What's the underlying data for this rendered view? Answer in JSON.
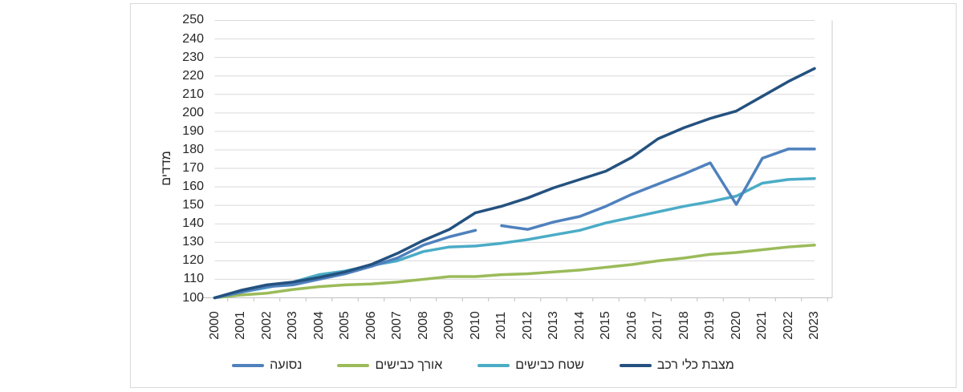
{
  "chart_data": {
    "type": "line",
    "title": "",
    "ylabel": "מדדים",
    "xlabel": "",
    "x": [
      2000,
      2001,
      2002,
      2003,
      2004,
      2005,
      2006,
      2007,
      2008,
      2009,
      2010,
      2011,
      2012,
      2013,
      2014,
      2015,
      2016,
      2017,
      2018,
      2019,
      2020,
      2021,
      2022,
      2023
    ],
    "yticks": [
      100,
      110,
      120,
      130,
      140,
      150,
      160,
      170,
      180,
      190,
      200,
      210,
      220,
      230,
      240,
      250
    ],
    "ylim": [
      100,
      250
    ],
    "grid": true,
    "legend_position": "bottom",
    "series": [
      {
        "key": "mileage",
        "name": "נסועה",
        "color": "#4F81BD",
        "gap_after_year": 2010,
        "values": [
          100,
          103,
          106,
          107,
          110,
          113,
          117,
          121.5,
          128.5,
          133,
          136.5,
          139,
          137,
          141,
          144,
          149.5,
          156,
          161.5,
          167,
          173,
          150.5,
          175.5,
          180.5,
          180.5
        ]
      },
      {
        "key": "road-length",
        "name": "אורך כבישים",
        "color": "#9BBB59",
        "values": [
          100,
          101.5,
          102.5,
          104.5,
          106,
          107,
          107.5,
          108.5,
          110,
          111.5,
          111.5,
          112.5,
          113,
          114,
          115,
          116.5,
          118,
          120,
          121.5,
          123.5,
          124.5,
          126,
          127.5,
          128.5
        ]
      },
      {
        "key": "road-area",
        "name": "שטח כבישים",
        "color": "#4BACC6",
        "values": [
          100,
          103,
          105.5,
          108.5,
          112.5,
          114.5,
          117.5,
          120,
          125,
          127.5,
          128,
          129.5,
          131.5,
          134,
          136.5,
          140.5,
          143.5,
          146.5,
          149.5,
          152,
          155,
          162,
          164,
          164.5
        ]
      },
      {
        "key": "vehicle-fleet",
        "name": "מצבת כלי רכב",
        "color": "#24517F",
        "values": [
          100,
          104,
          107,
          108.5,
          111,
          114,
          118,
          124,
          131,
          137,
          146,
          149.5,
          154,
          159.5,
          164,
          168.5,
          176,
          186,
          192,
          197,
          201,
          209,
          217,
          224
        ]
      }
    ],
    "colors": {
      "gridline": "#D9D9D9",
      "axis_line": "#BFBFBF",
      "plot_right_border": "#C9C9C9",
      "tick_text": "#262626"
    }
  }
}
